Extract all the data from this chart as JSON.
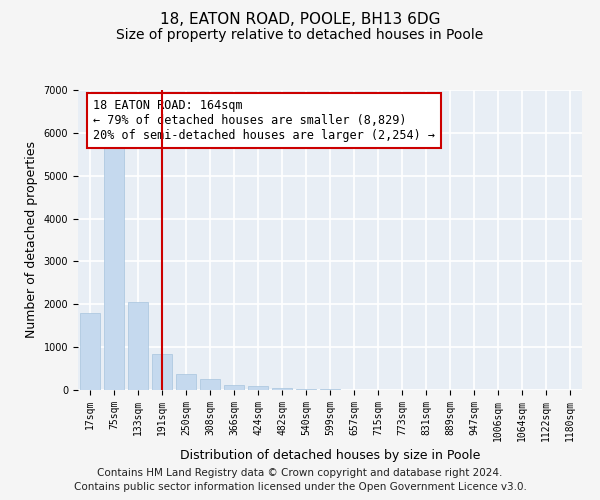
{
  "title_line1": "18, EATON ROAD, POOLE, BH13 6DG",
  "title_line2": "Size of property relative to detached houses in Poole",
  "xlabel": "Distribution of detached houses by size in Poole",
  "ylabel": "Number of detached properties",
  "bar_color": "#c5d9ee",
  "bar_edge_color": "#a8c4de",
  "categories": [
    "17sqm",
    "75sqm",
    "133sqm",
    "191sqm",
    "250sqm",
    "308sqm",
    "366sqm",
    "424sqm",
    "482sqm",
    "540sqm",
    "599sqm",
    "657sqm",
    "715sqm",
    "773sqm",
    "831sqm",
    "889sqm",
    "947sqm",
    "1006sqm",
    "1064sqm",
    "1122sqm",
    "1180sqm"
  ],
  "values": [
    1800,
    5750,
    2050,
    830,
    380,
    250,
    125,
    100,
    50,
    30,
    20,
    10,
    8,
    0,
    0,
    0,
    0,
    0,
    0,
    0,
    0
  ],
  "ylim": [
    0,
    7000
  ],
  "yticks": [
    0,
    1000,
    2000,
    3000,
    4000,
    5000,
    6000,
    7000
  ],
  "vline_color": "#cc0000",
  "vline_pos": 3.0,
  "annotation_text": "18 EATON ROAD: 164sqm\n← 79% of detached houses are smaller (8,829)\n20% of semi-detached houses are larger (2,254) →",
  "annotation_box_color": "#ffffff",
  "annotation_box_edge_color": "#cc0000",
  "footer_line1": "Contains HM Land Registry data © Crown copyright and database right 2024.",
  "footer_line2": "Contains public sector information licensed under the Open Government Licence v3.0.",
  "background_color": "#f5f5f5",
  "plot_bg_color": "#e8eef5",
  "grid_color": "#ffffff",
  "title_fontsize": 11,
  "subtitle_fontsize": 10,
  "axis_label_fontsize": 9,
  "tick_fontsize": 7,
  "footer_fontsize": 7.5,
  "annotation_fontsize": 8.5
}
